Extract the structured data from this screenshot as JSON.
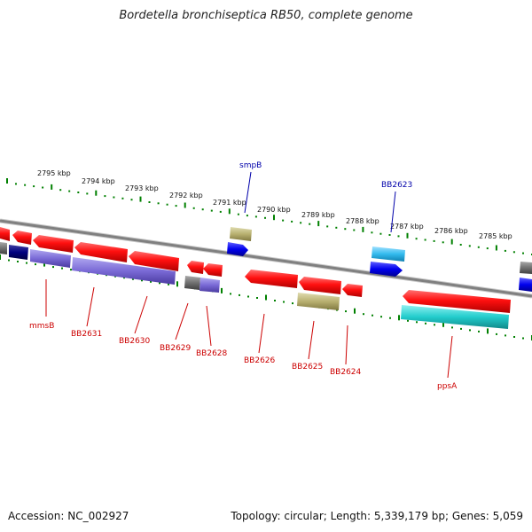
{
  "title": "Bordetella bronchiseptica RB50, complete genome",
  "accession": "Accession: NC_002927",
  "topology": "Topology: circular; Length: 5,339,179 bp; Genes: 5,059",
  "colors": {
    "tick": "#008000",
    "backbone": "#888888",
    "label_red": "#cc0000",
    "label_blue": "#0000aa",
    "gene_red": "#ff1a1a",
    "gene_purple": "#7a6ad6",
    "gene_blue": "#0000ee",
    "gene_navy": "#000080",
    "gene_olive": "#b8b070",
    "gene_grey": "#707070",
    "gene_cyan": "#22cccc",
    "gene_lightblue": "#33bbee"
  },
  "kbp_labels": [
    "2795 kbp",
    "2794 kbp",
    "2793 kbp",
    "2792 kbp",
    "2791 kbp",
    "2790 kbp",
    "2789 kbp",
    "2788 kbp",
    "2787 kbp",
    "2786 kbp",
    "2785 kbp"
  ],
  "gene_labels": [
    {
      "text": "mmsB",
      "color": "red"
    },
    {
      "text": "BB2631",
      "color": "red"
    },
    {
      "text": "BB2630",
      "color": "red"
    },
    {
      "text": "BB2629",
      "color": "red"
    },
    {
      "text": "BB2628",
      "color": "red"
    },
    {
      "text": "BB2626",
      "color": "red"
    },
    {
      "text": "BB2625",
      "color": "red"
    },
    {
      "text": "BB2624",
      "color": "red"
    },
    {
      "text": "ppsA",
      "color": "red"
    },
    {
      "text": "smpB",
      "color": "blue"
    },
    {
      "text": "BB2623",
      "color": "blue"
    }
  ]
}
